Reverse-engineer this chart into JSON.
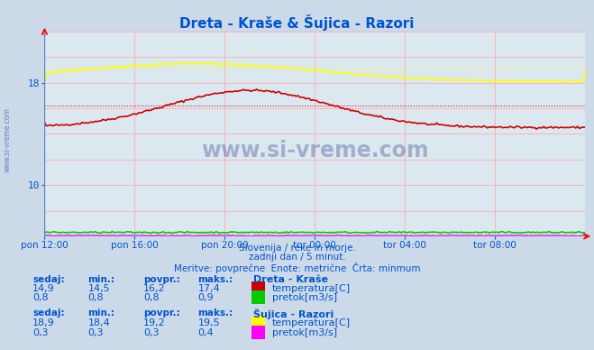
{
  "title": "Dreta - Kraše & Šujica - Razori",
  "title_color": "#0055cc",
  "fig_bg_color": "#ccd9e8",
  "plot_bg_color": "#dce8f0",
  "xticklabels": [
    "pon 12:00",
    "pon 16:00",
    "pon 20:00",
    "tor 00:00",
    "tor 04:00",
    "tor 08:00"
  ],
  "yticks": [
    10,
    18
  ],
  "ymin": 6,
  "ymax": 22,
  "n_points": 289,
  "dreta_temp_min": 14.5,
  "dreta_temp_max": 17.4,
  "dreta_temp_povpr": 16.2,
  "dreta_temp_sedaj": 14.9,
  "dreta_pretok_min": 0.8,
  "dreta_pretok_max": 0.9,
  "dreta_pretok_povpr": 0.8,
  "dreta_pretok_sedaj": 0.8,
  "sujica_temp_min": 18.4,
  "sujica_temp_max": 19.5,
  "sujica_temp_povpr": 19.2,
  "sujica_temp_sedaj": 18.9,
  "sujica_pretok_min": 0.3,
  "sujica_pretok_max": 0.4,
  "sujica_pretok_povpr": 0.3,
  "sujica_pretok_sedaj": 0.3,
  "color_dreta_temp": "#cc0000",
  "color_dreta_pretok": "#00cc00",
  "color_sujica_temp": "#ffff00",
  "color_sujica_pretok": "#ff00ff",
  "grid_color": "#ffaaaa",
  "watermark_text": "www.si-vreme.com",
  "subtitle1": "Slovenija / reke in morje.",
  "subtitle2": "zadnji dan / 5 minut.",
  "subtitle3": "Meritve: povprečne  Enote: metrične  Črta: minmum",
  "label_color": "#0055cc",
  "sidebar_text": "www.si-vreme.com",
  "sidebar_color": "#3366bb"
}
